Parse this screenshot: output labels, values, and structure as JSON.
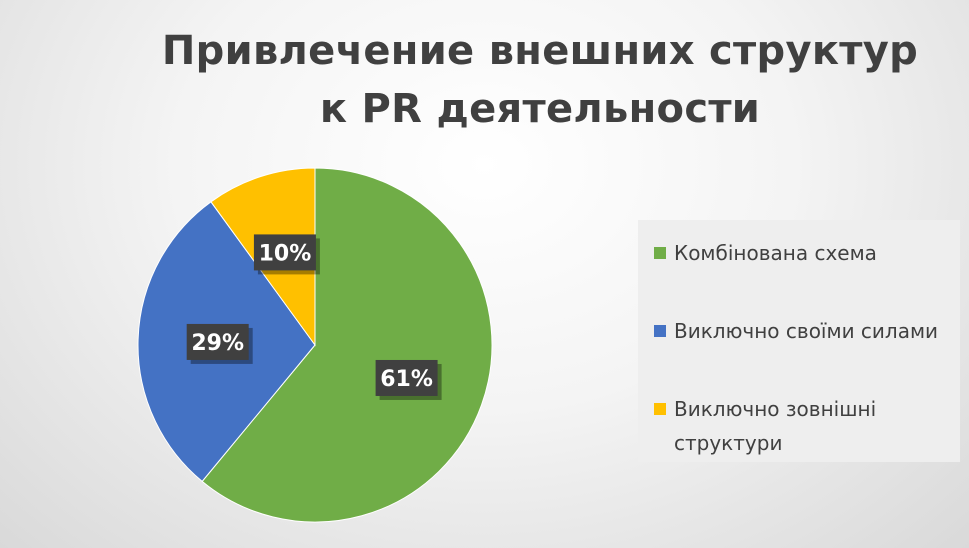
{
  "chart_data": {
    "type": "pie",
    "title": "Привлечение внешних структур к PR деятельности",
    "slices": [
      {
        "label": "Комбінована схема",
        "value": 61,
        "data_label": "61%",
        "color": "#70ad47"
      },
      {
        "label": "Виключно своїми силами",
        "value": 29,
        "data_label": "29%",
        "color": "#4472c4"
      },
      {
        "label": "Виключно зовнішні структури",
        "value": 10,
        "data_label": "10%",
        "color": "#ffc000"
      }
    ],
    "start_angle": "12 o'clock",
    "direction": "clockwise",
    "legend_position": "right"
  }
}
